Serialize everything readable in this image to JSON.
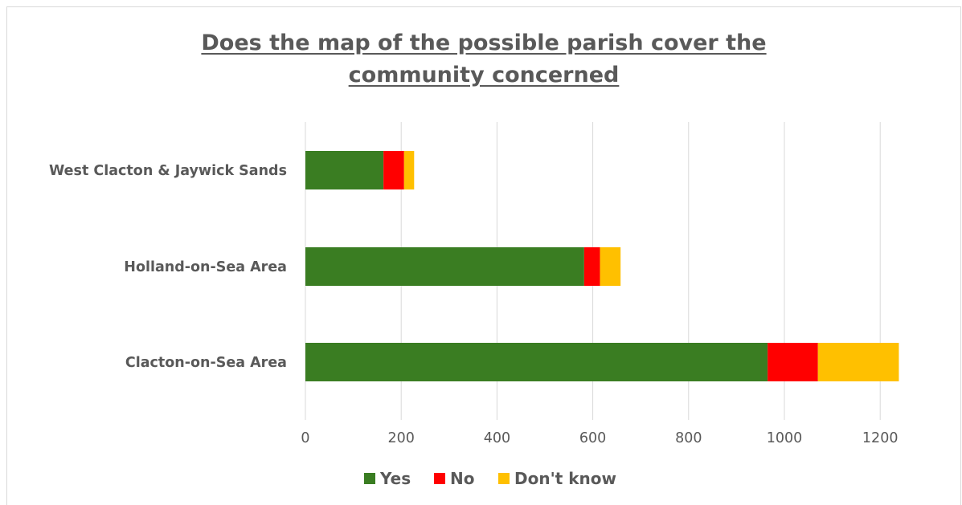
{
  "chart_data": {
    "type": "bar",
    "orientation": "horizontal",
    "stacked": true,
    "title_lines": [
      "Does the map of the possible parish cover the",
      "community concerned"
    ],
    "categories": [
      "West Clacton & Jaywick Sands",
      "Holland-on-Sea Area",
      "Clacton-on-Sea Area"
    ],
    "series": [
      {
        "name": "Yes",
        "color": "#3a7d22",
        "values": [
          163,
          582,
          965
        ]
      },
      {
        "name": "No",
        "color": "#ff0000",
        "values": [
          43,
          33,
          105
        ]
      },
      {
        "name": "Don't know",
        "color": "#ffc000",
        "values": [
          21,
          43,
          169
        ]
      }
    ],
    "xlim": [
      0,
      1240
    ],
    "xticks": [
      0,
      200,
      400,
      600,
      800,
      1000,
      1200
    ],
    "grid": true,
    "legend_position": "bottom"
  }
}
